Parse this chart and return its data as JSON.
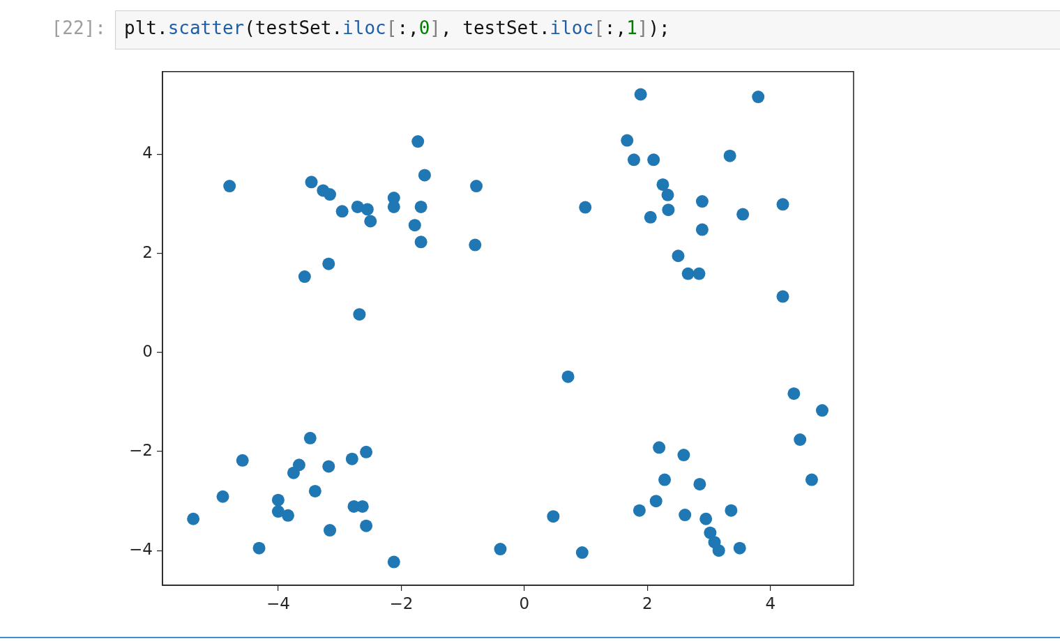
{
  "chart_data": {
    "type": "scatter",
    "annotations": [
      "[22]:",
      "plt.scatter(testSet.iloc[:,0], testSet.iloc[:,1]);"
    ],
    "x": [
      -4.79,
      -3.46,
      -3.27,
      -3.16,
      -2.96,
      -2.71,
      -2.55,
      -2.5,
      -3.18,
      -3.57,
      -2.68,
      -1.73,
      -1.62,
      -2.12,
      -2.12,
      -1.68,
      -1.78,
      -1.68,
      -0.78,
      -0.8,
      0.99,
      1.89,
      3.8,
      1.67,
      1.78,
      2.1,
      3.34,
      2.25,
      2.33,
      2.34,
      2.05,
      2.89,
      3.55,
      4.2,
      2.89,
      2.5,
      2.66,
      2.84,
      4.2,
      -5.38,
      -4.9,
      -4.58,
      -4.31,
      -4.0,
      -4.0,
      -3.84,
      -3.75,
      -3.66,
      -3.48,
      -3.4,
      -3.18,
      -3.16,
      -2.8,
      -2.57,
      -2.77,
      -2.63,
      -2.57,
      -2.12,
      -0.39,
      0.47,
      0.71,
      0.94,
      4.38,
      4.84,
      4.48,
      4.67,
      2.19,
      2.59,
      2.28,
      2.85,
      2.14,
      1.87,
      2.61,
      2.95,
      3.36,
      3.02,
      3.09,
      3.16,
      3.5
    ],
    "values": [
      3.36,
      3.44,
      3.27,
      3.19,
      2.85,
      2.94,
      2.89,
      2.65,
      1.79,
      1.53,
      0.77,
      4.26,
      3.58,
      3.12,
      2.94,
      2.94,
      2.57,
      2.23,
      3.36,
      2.17,
      2.93,
      5.21,
      5.16,
      4.28,
      3.89,
      3.89,
      3.97,
      3.39,
      3.18,
      2.88,
      2.73,
      3.05,
      2.79,
      2.99,
      2.48,
      1.95,
      1.59,
      1.59,
      1.13,
      -3.36,
      -2.91,
      -2.18,
      -3.95,
      -2.98,
      -3.21,
      -3.29,
      -2.43,
      -2.27,
      -1.73,
      -2.8,
      -2.3,
      -3.59,
      -2.15,
      -2.01,
      -3.11,
      -3.11,
      -3.5,
      -4.23,
      -3.97,
      -3.31,
      -0.49,
      -4.04,
      -0.83,
      -1.17,
      -1.76,
      -2.57,
      -1.92,
      -2.07,
      -2.57,
      -2.66,
      -3.0,
      -3.19,
      -3.28,
      -3.36,
      -3.19,
      -3.64,
      -3.83,
      -4.0,
      -3.95
    ],
    "color": "#1f77b4",
    "marker": "circle",
    "xlim": [
      -5.88,
      5.35
    ],
    "ylim": [
      -4.7,
      5.67
    ],
    "xticks": [
      {
        "value": -4,
        "label": "−4"
      },
      {
        "value": -2,
        "label": "−2"
      },
      0,
      2,
      4
    ],
    "yticks": [
      {
        "value": -4,
        "label": "−4"
      },
      {
        "value": -2,
        "label": "−2"
      },
      0,
      2,
      4
    ]
  }
}
